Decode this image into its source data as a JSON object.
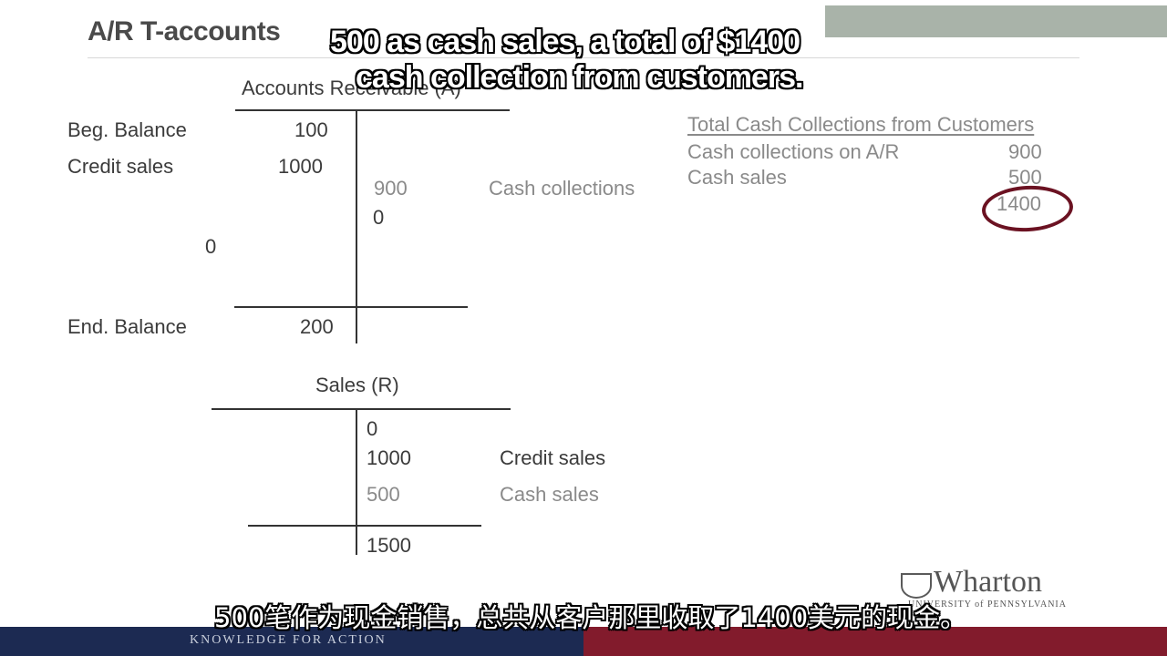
{
  "slide": {
    "title": "A/R T-accounts",
    "caption_en": [
      "500 as cash sales, a total of $1400",
      "cash collection from customers."
    ],
    "caption_zh": "500笔作为现金销售，总共从客户那里收取了1400美元的现金。"
  },
  "ar_account": {
    "title": "Accounts Receivable (A)",
    "beg_label": "Beg. Balance",
    "beg_value": "100",
    "credit_label": "Credit sales",
    "credit_value": "1000",
    "collections_value": "900",
    "collections_label": "Cash collections",
    "right_zero": "0",
    "left_zero": "0",
    "end_label": "End. Balance",
    "end_value": "200"
  },
  "sales_account": {
    "title": "Sales (R)",
    "entries": [
      {
        "value": "0",
        "label": ""
      },
      {
        "value": "1000",
        "label": "Credit sales"
      },
      {
        "value": "500",
        "label": "Cash sales"
      }
    ],
    "total": "1500"
  },
  "cash_summary": {
    "heading": "Total Cash Collections from Customers",
    "rows": [
      {
        "label": "Cash collections on A/R",
        "value": "900"
      },
      {
        "label": "Cash sales",
        "value": "500"
      }
    ],
    "total": "1400"
  },
  "branding": {
    "logo_name": "Wharton",
    "logo_sub": "UNIVERSITY of PENNSYLVANIA",
    "tagline": "KNOWLEDGE FOR ACTION"
  }
}
